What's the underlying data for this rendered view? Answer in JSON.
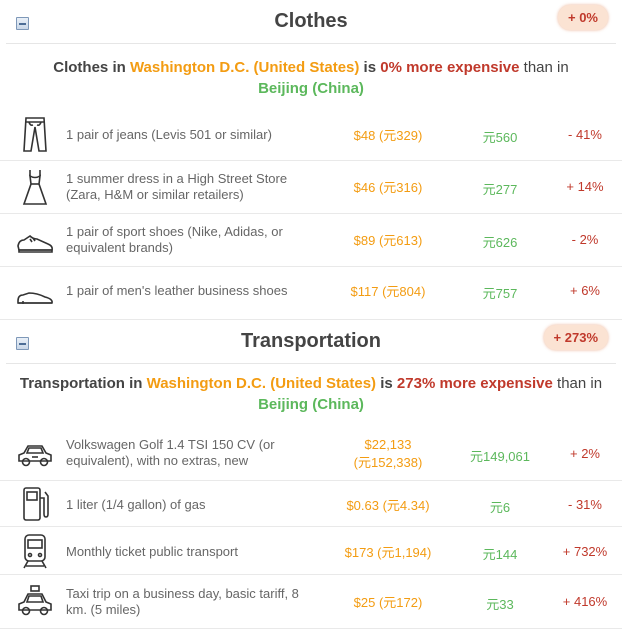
{
  "clothes": {
    "title": "Clothes",
    "badge": "+ 0%",
    "summary": {
      "lead": "Clothes in ",
      "city": "Washington D.C. (United States)",
      "mid": " is ",
      "pct": "0% more expensive",
      "than": " than in ",
      "base": "Beijing (China)"
    },
    "items": [
      {
        "icon": "jeans-icon",
        "label": "1 pair of jeans (Levis 501 or similar)",
        "price": "$48 (元329)",
        "local": "元560",
        "diff": "- 41%"
      },
      {
        "icon": "dress-icon",
        "label": "1 summer dress in a High Street Store (Zara, H&M or similar retailers)",
        "price": "$46 (元316)",
        "local": "元277",
        "diff": "+ 14%"
      },
      {
        "icon": "sport-shoe-icon",
        "label": "1 pair of sport shoes (Nike, Adidas, or equivalent brands)",
        "price": "$89 (元613)",
        "local": "元626",
        "diff": "- 2%"
      },
      {
        "icon": "leather-shoe-icon",
        "label": "1 pair of men's leather business shoes",
        "price": "$117 (元804)",
        "local": "元757",
        "diff": "+ 6%"
      }
    ]
  },
  "transport": {
    "title": "Transportation",
    "badge": "+ 273%",
    "summary": {
      "lead": "Transportation in ",
      "city": "Washington D.C. (United States)",
      "mid": " is ",
      "pct": "273% more expensive",
      "than": " than in ",
      "base": "Beijing (China)"
    },
    "items": [
      {
        "icon": "car-icon",
        "label": "Volkswagen Golf 1.4 TSI 150 CV (or equivalent), with no extras, new",
        "price_line1": "$22,133",
        "price_line2": "(元152,338)",
        "local": "元149,061",
        "diff": "+ 2%"
      },
      {
        "icon": "gas-pump-icon",
        "label": "1 liter (1/4 gallon) of gas",
        "price": "$0.63 (元4.34)",
        "local": "元6",
        "diff": "- 31%"
      },
      {
        "icon": "train-icon",
        "label": "Monthly ticket public transport",
        "price": "$173 (元1,194)",
        "local": "元144",
        "diff": "+ 732%"
      },
      {
        "icon": "taxi-icon",
        "label": "Taxi trip on a business day, basic tariff, 8 km. (5 miles)",
        "price": "$25 (元172)",
        "local": "元33",
        "diff": "+ 416%"
      }
    ]
  },
  "colors": {
    "city": "#f39c12",
    "expensive": "#c0392b",
    "base": "#5cb85c",
    "badge_bg": "#fbe3d3"
  }
}
